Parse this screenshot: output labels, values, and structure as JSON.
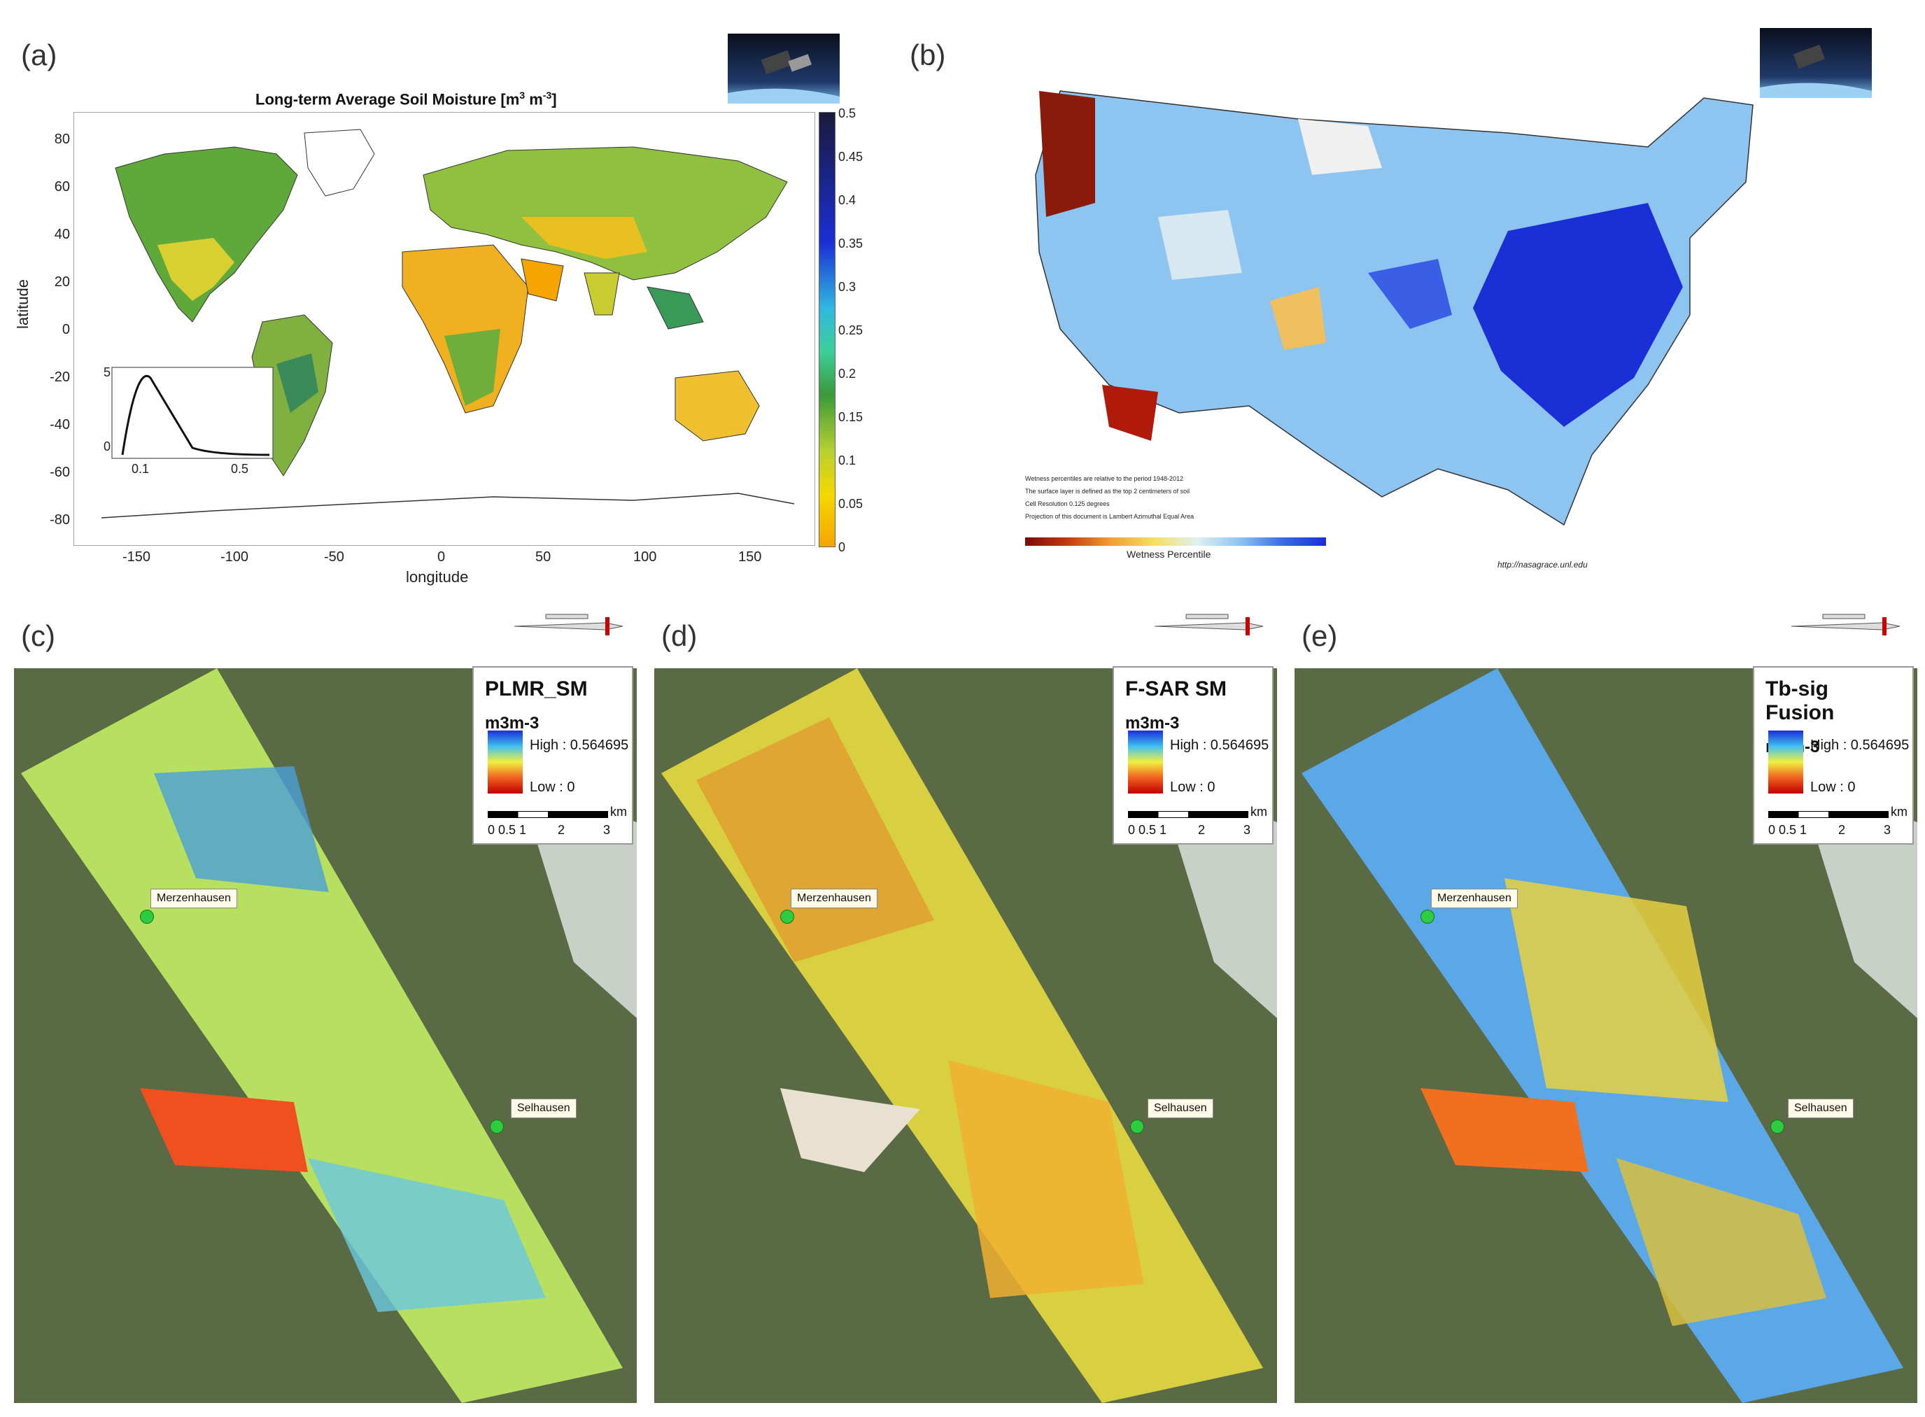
{
  "panels": {
    "a": {
      "label": "(a)",
      "title": "Long-term Average Soil Moisture [m",
      "title_sup1": "3",
      "title_mid": " m",
      "title_sup2": "-3",
      "title_end": "]",
      "xlabel": "longitude",
      "ylabel": "latitude",
      "xticks": [
        "-150",
        "-100",
        "-50",
        "0",
        "50",
        "100",
        "150"
      ],
      "yticks": [
        "80",
        "60",
        "40",
        "20",
        "0",
        "-20",
        "-40",
        "-60",
        "-80"
      ],
      "colorbar_ticks": [
        "0.5",
        "0.45",
        "0.4",
        "0.35",
        "0.3",
        "0.25",
        "0.2",
        "0.15",
        "0.1",
        "0.05",
        "0"
      ],
      "inset": {
        "yticks": [
          "5",
          "0"
        ],
        "xticks": [
          "0.1",
          "0.5"
        ]
      }
    },
    "b": {
      "label": "(b)",
      "notes": [
        "Wetness percentiles are relative to the period 1948-2012",
        "The surface layer is defined as the top 2 centimeters of soil",
        "Cell Resolution 0.125 degrees",
        "Projection of this document is Lambert Azimuthal Equal Area"
      ],
      "legend_title": "Wetness Percentile",
      "url": "http://nasagrace.unl.edu"
    },
    "c": {
      "label": "(c)",
      "legend_title": "PLMR_SM"
    },
    "d": {
      "label": "(d)",
      "legend_title": "F-SAR SM"
    },
    "e": {
      "label": "(e)",
      "legend_title": "Tb-sig Fusion"
    }
  },
  "legend_common": {
    "unit": "m3m-3",
    "high": "High : 0.564695",
    "low": "Low : 0",
    "scale_labels": [
      "0 0.5 1",
      "2",
      "3"
    ],
    "scale_unit": "km"
  },
  "sites": {
    "merzenhausen": "Merzenhausen",
    "selhausen": "Selhausen"
  },
  "colors": {
    "ocean": "#ffffff",
    "wet": "#1a2fd6",
    "dry": "#f5a400",
    "satellite_bg": "#5a6a45"
  }
}
